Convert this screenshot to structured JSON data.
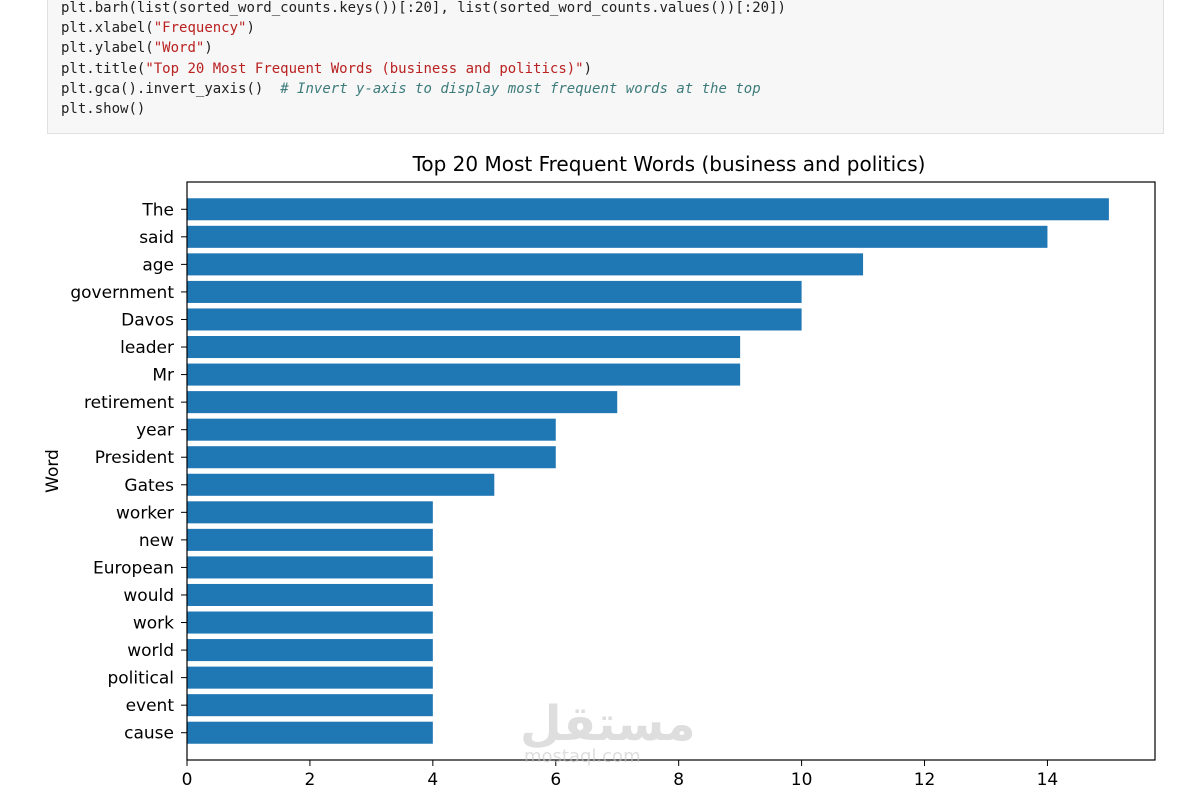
{
  "code_cell": {
    "lines": [
      [
        [
          "plt",
          "kw"
        ],
        [
          ".",
          "dot"
        ],
        [
          "barh(list(sorted_word_counts",
          "kw"
        ],
        [
          ".",
          "dot"
        ],
        [
          "keys())[:",
          "kw"
        ],
        [
          "20",
          "num"
        ],
        [
          "], list(sorted_word_counts",
          "kw"
        ],
        [
          ".",
          "dot"
        ],
        [
          "values())[:",
          "kw"
        ],
        [
          "20",
          "num"
        ],
        [
          "])",
          "kw"
        ]
      ],
      [
        [
          "plt",
          "kw"
        ],
        [
          ".",
          "dot"
        ],
        [
          "xlabel(",
          "kw"
        ],
        [
          "\"Frequency\"",
          "str"
        ],
        [
          ")",
          "kw"
        ]
      ],
      [
        [
          "plt",
          "kw"
        ],
        [
          ".",
          "dot"
        ],
        [
          "ylabel(",
          "kw"
        ],
        [
          "\"Word\"",
          "str"
        ],
        [
          ")",
          "kw"
        ]
      ],
      [
        [
          "plt",
          "kw"
        ],
        [
          ".",
          "dot"
        ],
        [
          "title(",
          "kw"
        ],
        [
          "\"Top 20 Most Frequent Words (business and politics)\"",
          "str"
        ],
        [
          ")",
          "kw"
        ]
      ],
      [
        [
          "plt",
          "kw"
        ],
        [
          ".",
          "dot"
        ],
        [
          "gca()",
          "kw"
        ],
        [
          ".",
          "dot"
        ],
        [
          "invert_yaxis()  ",
          "kw"
        ],
        [
          "# Invert y-axis to display most frequent words at the top",
          "com"
        ]
      ],
      [
        [
          "plt",
          "kw"
        ],
        [
          ".",
          "dot"
        ],
        [
          "show()",
          "kw"
        ]
      ]
    ]
  },
  "chart_data": {
    "type": "bar",
    "orientation": "horizontal",
    "title": "Top 20 Most Frequent Words (business and politics)",
    "xlabel": "",
    "ylabel": "Word",
    "categories": [
      "The",
      "said",
      "age",
      "government",
      "Davos",
      "leader",
      "Mr",
      "retirement",
      "year",
      "President",
      "Gates",
      "worker",
      "new",
      "European",
      "would",
      "work",
      "world",
      "political",
      "event",
      "cause"
    ],
    "values": [
      15,
      14,
      11,
      10,
      10,
      9,
      9,
      7,
      6,
      6,
      5,
      4,
      4,
      4,
      4,
      4,
      4,
      4,
      4,
      4
    ],
    "xlim": [
      0,
      15.75
    ],
    "xticks": [
      0,
      2,
      4,
      6,
      8,
      10,
      12,
      14
    ],
    "bar_color": "#1f77b4",
    "grid": false
  },
  "watermark": {
    "arabic": "مستقل",
    "latin": "mostaql.com"
  }
}
